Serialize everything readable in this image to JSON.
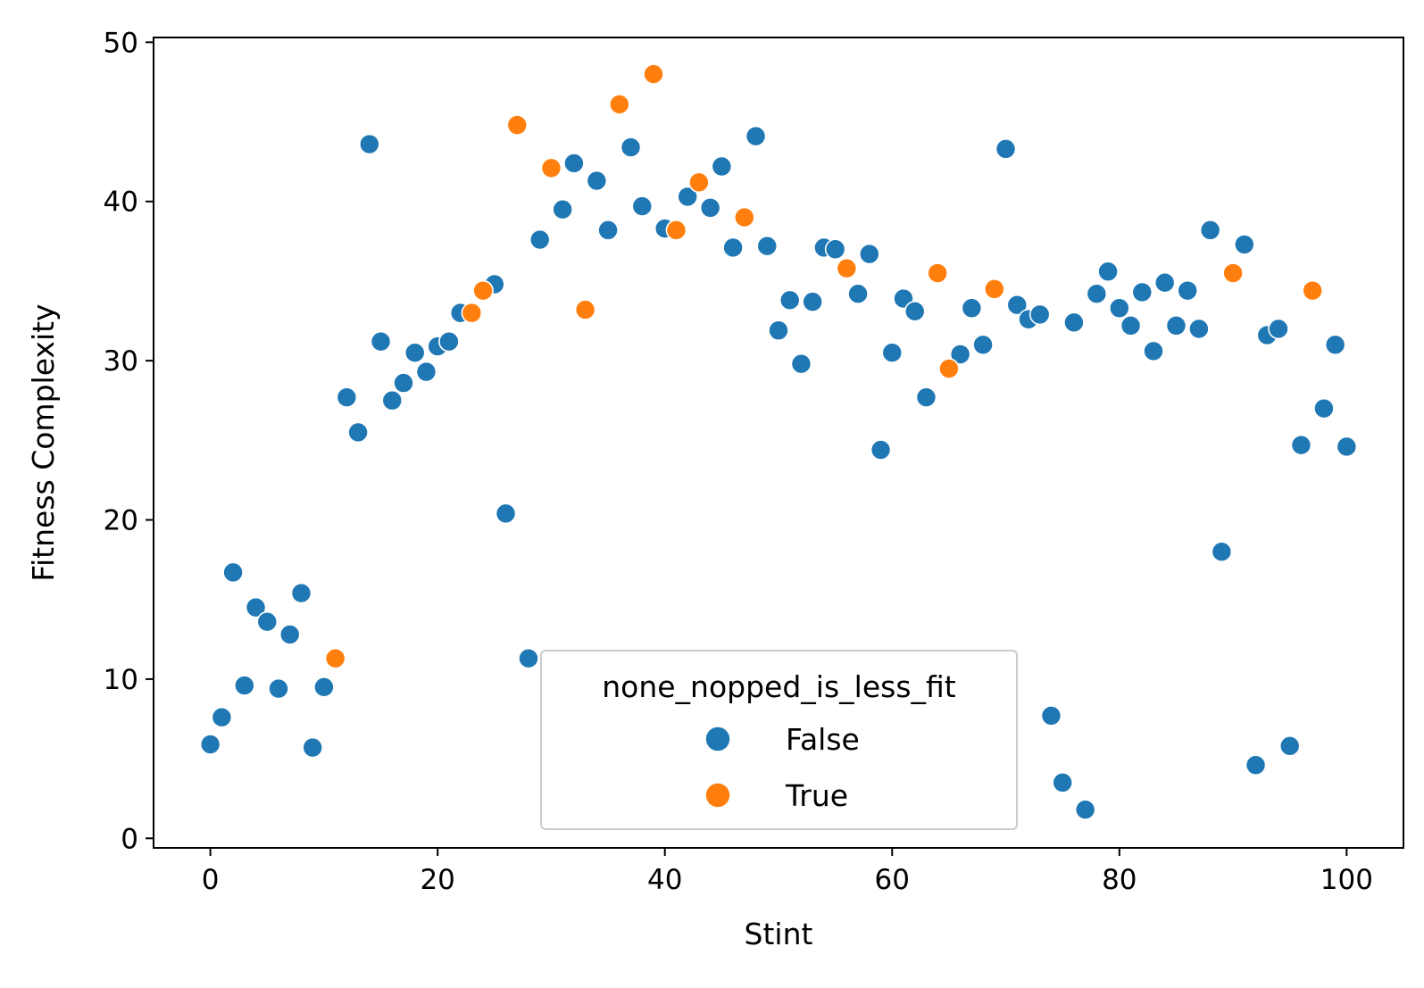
{
  "chart_data": {
    "type": "scatter",
    "title": "",
    "xlabel": "Stint",
    "ylabel": "Fitness Complexity",
    "xlim": [
      -5,
      105
    ],
    "ylim": [
      -0.6,
      50.3
    ],
    "xticks": [
      0,
      20,
      40,
      60,
      80,
      100
    ],
    "yticks": [
      0,
      10,
      20,
      30,
      40,
      50
    ],
    "grid": false,
    "legend": {
      "title": "none_nopped_is_less_fit",
      "placement": "lower center",
      "entries": [
        "False",
        "True"
      ]
    },
    "colors": {
      "False": "#1f77b4",
      "True": "#ff7f0e"
    },
    "series": [
      {
        "name": "False",
        "x": [
          0,
          1,
          2,
          3,
          4,
          5,
          6,
          7,
          8,
          9,
          10,
          12,
          13,
          14,
          15,
          16,
          17,
          18,
          19,
          20,
          21,
          22,
          25,
          26,
          28,
          29,
          31,
          32,
          34,
          35,
          37,
          38,
          40,
          42,
          44,
          45,
          46,
          48,
          49,
          50,
          51,
          52,
          53,
          54,
          55,
          57,
          58,
          59,
          60,
          61,
          62,
          63,
          66,
          67,
          68,
          70,
          71,
          72,
          73,
          74,
          75,
          76,
          77,
          78,
          79,
          80,
          81,
          82,
          83,
          84,
          85,
          86,
          87,
          88,
          89,
          91,
          92,
          93,
          94,
          95,
          96,
          98,
          99,
          100
        ],
        "y": [
          5.9,
          7.6,
          16.7,
          9.6,
          14.5,
          13.6,
          9.4,
          12.8,
          15.4,
          5.7,
          9.5,
          27.7,
          25.5,
          43.6,
          31.2,
          27.5,
          28.6,
          30.5,
          29.3,
          30.9,
          31.2,
          33.0,
          34.8,
          20.4,
          11.3,
          37.6,
          39.5,
          42.4,
          41.3,
          38.2,
          43.4,
          39.7,
          38.3,
          40.3,
          39.6,
          42.2,
          37.1,
          44.1,
          37.2,
          31.9,
          33.8,
          29.8,
          33.7,
          37.1,
          37.0,
          34.2,
          36.7,
          24.4,
          30.5,
          33.9,
          33.1,
          27.7,
          30.4,
          33.3,
          31.0,
          43.3,
          33.5,
          32.6,
          32.9,
          7.7,
          3.5,
          32.4,
          1.8,
          34.2,
          35.6,
          33.3,
          32.2,
          34.3,
          30.6,
          34.9,
          32.2,
          34.4,
          32.0,
          38.2,
          18.0,
          37.3,
          4.6,
          31.6,
          32.0,
          5.8,
          24.7,
          27.0,
          31.0,
          24.6
        ]
      },
      {
        "name": "True",
        "x": [
          11,
          23,
          24,
          27,
          30,
          33,
          36,
          39,
          41,
          43,
          47,
          56,
          64,
          65,
          69,
          90,
          97
        ],
        "y": [
          11.3,
          33.0,
          34.4,
          44.8,
          42.1,
          33.2,
          46.1,
          48.0,
          38.2,
          41.2,
          39.0,
          35.8,
          35.5,
          29.5,
          34.5,
          35.5,
          34.4
        ]
      }
    ]
  }
}
